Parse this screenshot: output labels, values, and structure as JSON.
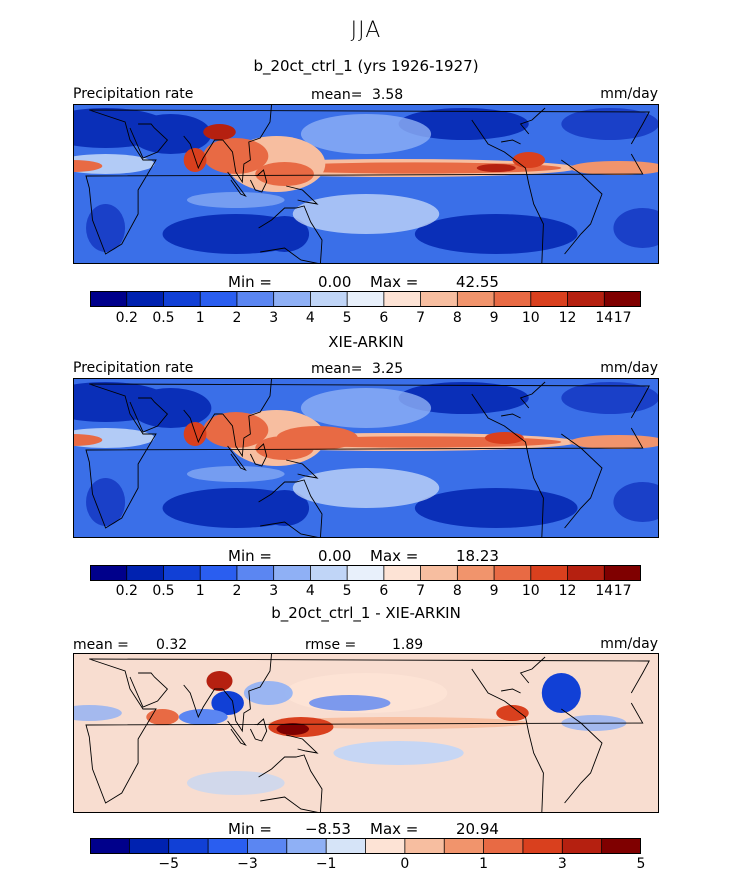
{
  "season": "JJA",
  "panels": [
    {
      "title": "b_20ct_ctrl_1 (yrs 1926-1927)",
      "left_label": "Precipitation rate",
      "stat_label": "mean=",
      "stat_value": "3.58",
      "rmse_label": "",
      "rmse_value": "",
      "units": "mm/day",
      "min_label": "Min =",
      "min_value": "0.00",
      "max_label": "Max =",
      "max_value": "42.55",
      "ticks": [
        "0.2",
        "0.5",
        "1",
        "2",
        "3",
        "4",
        "5",
        "6",
        "7",
        "8",
        "9",
        "10",
        "12",
        "14",
        "17"
      ],
      "type": "abs"
    },
    {
      "title": "XIE-ARKIN",
      "left_label": "Precipitation rate",
      "stat_label": "mean=",
      "stat_value": "3.25",
      "rmse_label": "",
      "rmse_value": "",
      "units": "mm/day",
      "min_label": "Min =",
      "min_value": "0.00",
      "max_label": "Max =",
      "max_value": "18.23",
      "ticks": [
        "0.2",
        "0.5",
        "1",
        "2",
        "3",
        "4",
        "5",
        "6",
        "7",
        "8",
        "9",
        "10",
        "12",
        "14",
        "17"
      ],
      "type": "abs"
    },
    {
      "title": "b_20ct_ctrl_1 - XIE-ARKIN",
      "left_label": "",
      "stat_label": "mean =",
      "stat_value": "0.32",
      "rmse_label": "rmse =",
      "rmse_value": "1.89",
      "units": "mm/day",
      "min_label": "Min =",
      "min_value": "−8.53",
      "max_label": "Max =",
      "max_value": "20.94",
      "ticks": [
        "−5",
        "−3",
        "−1",
        "0",
        "1",
        "3",
        "5"
      ],
      "type": "diff"
    }
  ],
  "colors": {
    "scale": [
      "#00008b",
      "#0022b0",
      "#1140d6",
      "#2a5ef0",
      "#5b86f2",
      "#8fb0f5",
      "#c0d5f7",
      "#e8f0fb",
      "#fde3d5",
      "#f7bea0",
      "#f1946c",
      "#e86a44",
      "#d9401e",
      "#b52010",
      "#7f0000"
    ]
  }
}
